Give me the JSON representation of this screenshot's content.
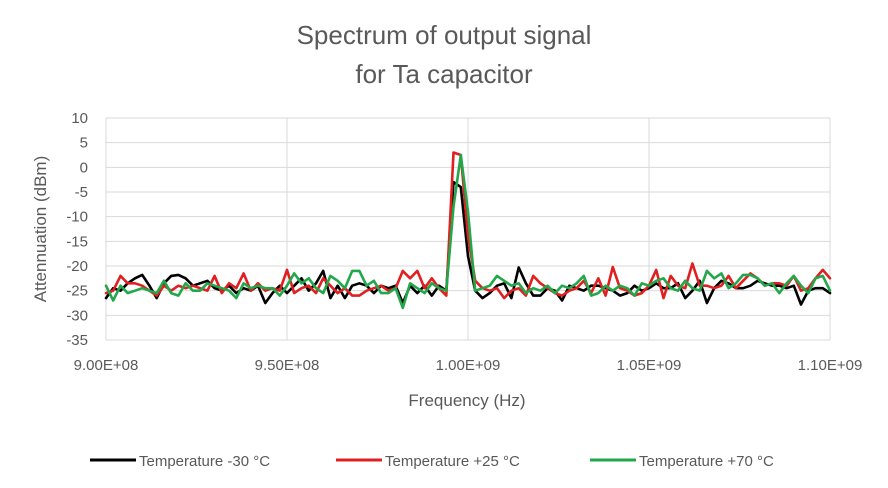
{
  "chart_data": {
    "type": "line",
    "title": [
      "Spectrum of output signal",
      "for Ta capacitor"
    ],
    "xlabel": "Frequency (Hz)",
    "ylabel": "Attennuation (dBm)",
    "xlim": [
      900000000,
      1100000000
    ],
    "ylim": [
      -35,
      10
    ],
    "x_ticks": [
      900000000,
      950000000,
      1000000000,
      1050000000,
      1100000000
    ],
    "x_tick_labels": [
      "9.00E+08",
      "9.50E+08",
      "1.00E+09",
      "1.05E+09",
      "1.10E+09"
    ],
    "y_ticks": [
      10,
      5,
      0,
      -5,
      -10,
      -15,
      -20,
      -25,
      -30,
      -35
    ],
    "y_tick_labels": [
      "10",
      "5",
      "0",
      "-5",
      "-10",
      "-15",
      "-20",
      "-25",
      "-30",
      "-35"
    ],
    "grid": true,
    "legend_position": "bottom",
    "x": [
      900000000,
      902000000,
      904000000,
      906000000,
      908000000,
      910000000,
      912000000,
      914000000,
      916000000,
      918000000,
      920000000,
      922000000,
      924000000,
      926000000,
      928000000,
      930000000,
      932000000,
      934000000,
      936000000,
      938000000,
      940000000,
      942000000,
      944000000,
      946000000,
      948000000,
      950000000,
      952000000,
      954000000,
      956000000,
      958000000,
      960000000,
      962000000,
      964000000,
      966000000,
      968000000,
      970000000,
      972000000,
      974000000,
      976000000,
      978000000,
      980000000,
      982000000,
      984000000,
      986000000,
      988000000,
      990000000,
      992000000,
      994000000,
      996000000,
      998000000,
      1000000000,
      1002000000,
      1004000000,
      1006000000,
      1008000000,
      1010000000,
      1012000000,
      1014000000,
      1016000000,
      1018000000,
      1020000000,
      1022000000,
      1024000000,
      1026000000,
      1028000000,
      1030000000,
      1032000000,
      1034000000,
      1036000000,
      1038000000,
      1040000000,
      1042000000,
      1044000000,
      1046000000,
      1048000000,
      1050000000,
      1052000000,
      1054000000,
      1056000000,
      1058000000,
      1060000000,
      1062000000,
      1064000000,
      1066000000,
      1068000000,
      1070000000,
      1072000000,
      1074000000,
      1076000000,
      1078000000,
      1080000000,
      1082000000,
      1084000000,
      1086000000,
      1088000000,
      1090000000,
      1092000000,
      1094000000,
      1096000000,
      1098000000,
      1100000000
    ],
    "series": [
      {
        "name": "Temperature -30 °C",
        "color": "#000000",
        "values": [
          -26.5,
          -24.5,
          -25,
          -23.5,
          -22.5,
          -21.8,
          -24,
          -26.5,
          -23.5,
          -22,
          -21.8,
          -22.5,
          -24,
          -23.5,
          -23,
          -24.5,
          -25,
          -24,
          -25.5,
          -24.5,
          -25,
          -24,
          -27.5,
          -25.5,
          -24,
          -25.5,
          -24,
          -22.5,
          -25,
          -23.5,
          -21,
          -26.5,
          -24,
          -26.5,
          -24,
          -23.5,
          -24,
          -25.5,
          -24,
          -24.5,
          -24,
          -27.5,
          -24,
          -25.5,
          -24,
          -26,
          -24,
          -25,
          -3,
          -4,
          -18,
          -25,
          -26.5,
          -25.5,
          -24,
          -23.5,
          -26.5,
          -20.3,
          -23.5,
          -26,
          -26,
          -24.5,
          -25,
          -27,
          -24,
          -24.5,
          -25,
          -24,
          -24,
          -24.5,
          -25,
          -26,
          -25.5,
          -24,
          -25,
          -24.5,
          -23.5,
          -24.5,
          -24.5,
          -23.5,
          -26.5,
          -25,
          -23,
          -27.5,
          -24.5,
          -23,
          -23.5,
          -24.5,
          -24.5,
          -24,
          -23,
          -23.5,
          -24,
          -24,
          -24.5,
          -24,
          -27.8,
          -25,
          -24.5,
          -24.5,
          -25.5
        ]
      },
      {
        "name": "Temperature +25 °C",
        "color": "#e02020",
        "values": [
          -25.5,
          -25,
          -22,
          -23.5,
          -23.5,
          -24,
          -25,
          -26,
          -24,
          -25,
          -24,
          -24.5,
          -24,
          -24.5,
          -25,
          -22,
          -25.5,
          -23.5,
          -24.5,
          -21.5,
          -25,
          -23.5,
          -25,
          -24.5,
          -25,
          -20.8,
          -25.5,
          -24.5,
          -24,
          -25.5,
          -22.5,
          -24,
          -25.5,
          -24.5,
          -26,
          -26,
          -25,
          -24.5,
          -24,
          -25,
          -24.5,
          -21,
          -22.5,
          -21,
          -24.5,
          -22.5,
          -24.5,
          -26,
          3,
          2.5,
          -14,
          -23,
          -24.5,
          -25,
          -24.5,
          -26.5,
          -25,
          -24.5,
          -26,
          -22,
          -23.5,
          -24.5,
          -25.5,
          -26,
          -25,
          -24.5,
          -23,
          -25.5,
          -22.5,
          -26,
          -20.2,
          -24.5,
          -25,
          -26,
          -25.5,
          -24,
          -20.8,
          -26.5,
          -22,
          -24,
          -24.5,
          -19.5,
          -24,
          -24,
          -24.5,
          -24,
          -22,
          -24.5,
          -23,
          -21.5,
          -22.5,
          -24,
          -23.5,
          -23.5,
          -24,
          -22,
          -25,
          -24.5,
          -22.5,
          -20.8,
          -22.5
        ]
      },
      {
        "name": "Temperature +70 °C",
        "color": "#22a84a",
        "values": [
          -24,
          -27,
          -24,
          -25.5,
          -25,
          -24.5,
          -25,
          -25.5,
          -23,
          -25.5,
          -26,
          -23.5,
          -25,
          -25,
          -23.5,
          -24,
          -24.5,
          -25,
          -26.5,
          -23.5,
          -24.5,
          -24,
          -24.5,
          -24.5,
          -26,
          -24,
          -21.5,
          -23.5,
          -22.5,
          -24.5,
          -25.5,
          -22,
          -23,
          -24.5,
          -21,
          -21,
          -24,
          -23,
          -25.5,
          -25.5,
          -24.5,
          -28.5,
          -23.5,
          -24.5,
          -25.5,
          -23.5,
          -24.5,
          -25,
          -8,
          2.5,
          -9,
          -25,
          -24.5,
          -24,
          -22,
          -23,
          -24,
          -23.5,
          -25.5,
          -24.5,
          -25,
          -24,
          -25.5,
          -24,
          -24.5,
          -23.5,
          -22,
          -26,
          -25.5,
          -24,
          -25,
          -24,
          -24.5,
          -26,
          -23.5,
          -24,
          -23,
          -22.5,
          -24.5,
          -25,
          -23,
          -24.5,
          -25,
          -21,
          -22.5,
          -21.5,
          -24.5,
          -23.5,
          -21.8,
          -21.8,
          -22.5,
          -24,
          -23.5,
          -25.5,
          -23.5,
          -22,
          -24,
          -25.5,
          -22.5,
          -22,
          -25
        ]
      }
    ]
  }
}
